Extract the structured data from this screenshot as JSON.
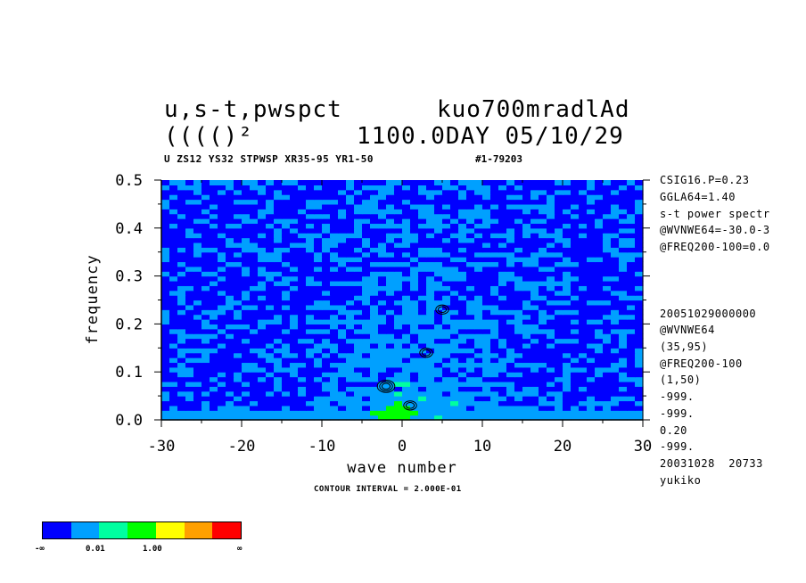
{
  "header": {
    "title_left": "u,s-t,pwspct",
    "title_right": "kuo700mradlAd",
    "title2_left": "(((()²",
    "title2_right": "1100.0DAY 05/10/29",
    "subtitle_left": "U ZS12 YS32 STPWSP XR35-95 YR1-50",
    "subtitle_right": "#1-79203"
  },
  "side_info": [
    "CSIG16.P=0.23",
    "GGLA64=1.40",
    "s-t power spectr",
    "@WVNWE64=-30.0-3",
    "@FREQ200-100=0.0",
    "20051029000000",
    "@WVNWE64",
    "(35,95)",
    "@FREQ200-100",
    "(1,50)",
    "-999.",
    "-999.",
    "0.20",
    "-999.",
    "20031028  20733",
    "yukiko"
  ],
  "contour_interval": "CONTOUR INTERVAL = 2.000E-01",
  "colorbar": {
    "colors": [
      "#0000ff",
      "#00a0ff",
      "#00ffa0",
      "#00ff00",
      "#ffff00",
      "#ffa000",
      "#ff0000"
    ],
    "labels": [
      "-∞",
      "0.01",
      "1.00",
      "∞"
    ]
  },
  "chart_data": {
    "type": "heatmap",
    "xlabel": "wave number",
    "ylabel": "frequency",
    "xlim": [
      -30,
      30
    ],
    "ylim": [
      0,
      0.5
    ],
    "xticks": [
      "-30",
      "-20",
      "-10",
      "0",
      "10",
      "20",
      "30"
    ],
    "yticks": [
      "0.0",
      "0.1",
      "0.2",
      "0.3",
      "0.4",
      "0.5"
    ],
    "contour_levels_approx": [
      0.2,
      0.4,
      0.6
    ],
    "peaks": [
      {
        "x": -2,
        "y": 0.07
      },
      {
        "x": 1,
        "y": 0.03
      },
      {
        "x": 3,
        "y": 0.14
      },
      {
        "x": 5,
        "y": 0.23
      }
    ]
  }
}
